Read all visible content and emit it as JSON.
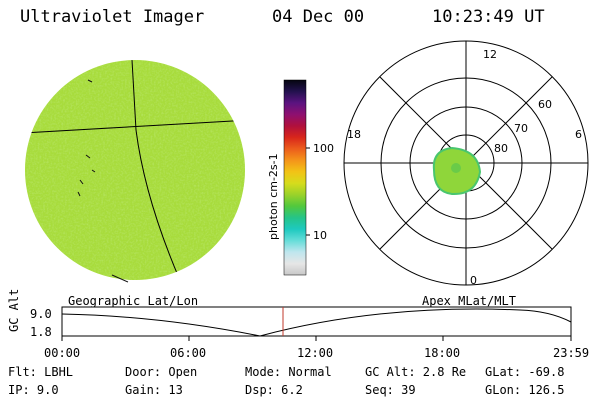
{
  "header": {
    "title": "Ultraviolet Imager",
    "date": "04 Dec 00",
    "time": "10:23:49 UT"
  },
  "colorbar": {
    "label": "photon cm-2s-1",
    "ticks": [
      "100",
      "10"
    ],
    "stops": [
      "#c8c8c8",
      "#e6e6e6",
      "#bfe6ee",
      "#66ddd9",
      "#1ec9bf",
      "#25c488",
      "#52c83d",
      "#9ad22a",
      "#d6dc1c",
      "#f2c316",
      "#f4941a",
      "#ec5d1c",
      "#d8261b",
      "#b0103d",
      "#8e1070",
      "#5b1380",
      "#23114e",
      "#050510"
    ]
  },
  "polar": {
    "hour_labels": [
      "12",
      "18",
      "6",
      "0"
    ],
    "lat_labels": [
      "60",
      "70",
      "80"
    ]
  },
  "strip": {
    "left_label": "Geographic Lat/Lon",
    "right_label": "Apex  MLat/MLT",
    "y_axis_label": "GC Alt",
    "y_ticks": [
      "9.0",
      "1.8"
    ],
    "x_ticks": [
      "00:00",
      "06:00",
      "12:00",
      "18:00",
      "23:59"
    ],
    "current_marker": "10:24"
  },
  "info": {
    "filter": "Flt: LBHL",
    "door": "Door: Open",
    "mode": "Mode: Normal",
    "gc_alt": "GC Alt: 2.8 Re",
    "glat": "GLat: -69.8",
    "ip": "IP:  9.0",
    "gain": "Gain: 13",
    "dsp": "Dsp:    6.2",
    "seq": "Seq: 39",
    "glon": "GLon: 126.5"
  },
  "colors": {
    "earth_disk": "#a8dc3c",
    "oval_green": "#8fd63a",
    "oval_edge": "#49c66e",
    "marker": "#c0392b"
  }
}
